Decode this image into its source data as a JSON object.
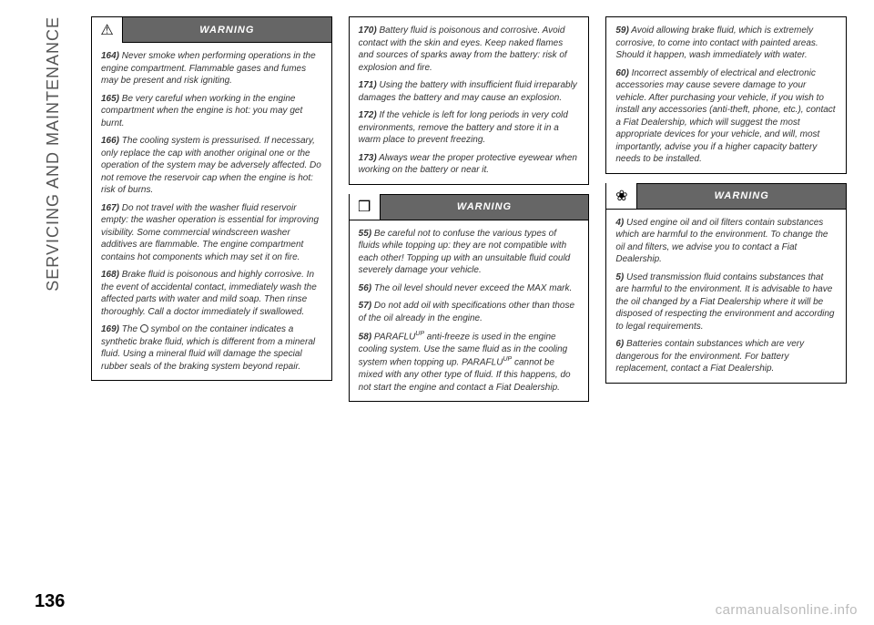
{
  "section_title": "SERVICING AND MAINTENANCE",
  "page_number": "136",
  "watermark": "carmanualsonline.info",
  "labels": {
    "warning": "WARNING"
  },
  "icons": {
    "triangle": "⚠",
    "car": "❒",
    "leaf": "❀"
  },
  "col1": {
    "box1": {
      "p164": {
        "num": "164)",
        "text": " Never smoke when performing operations in the engine compartment. Flammable gases and fumes may be present and risk igniting."
      },
      "p165": {
        "num": "165)",
        "text": " Be very careful when working in the engine compartment when the engine is hot: you may get burnt."
      },
      "p166": {
        "num": "166)",
        "text": " The cooling system is pressurised. If necessary, only replace the cap with another original one or the operation of the system may be adversely affected. Do not remove the reservoir cap when the engine is hot: risk of burns."
      },
      "p167": {
        "num": "167)",
        "text": " Do not travel with the washer fluid reservoir empty: the washer operation is essential for improving visibility. Some commercial windscreen washer additives are flammable. The engine compartment contains hot components which may set it on fire."
      },
      "p168": {
        "num": "168)",
        "text": " Brake fluid is poisonous and highly corrosive. In the event of accidental contact, immediately wash the affected parts with water and mild soap. Then rinse thoroughly. Call a doctor immediately if swallowed."
      },
      "p169a": {
        "num": "169)",
        "text_before": " The ",
        "text_after": " symbol on the container indicates a synthetic brake fluid, which is different from a mineral fluid. Using a mineral fluid will damage the special rubber seals of the braking system beyond repair."
      }
    }
  },
  "col2": {
    "box1": {
      "p170": {
        "num": "170)",
        "text": " Battery fluid is poisonous and corrosive. Avoid contact with the skin and eyes. Keep naked flames and sources of sparks away from the battery: risk of explosion and fire."
      },
      "p171": {
        "num": "171)",
        "text": "  Using the battery with insufficient fluid irreparably damages the battery and may cause an explosion."
      },
      "p172": {
        "num": "172)",
        "text": "  If the vehicle is left for long periods in very cold environments, remove the battery and store it in a warm place to prevent freezing."
      },
      "p173": {
        "num": "173)",
        "text": " Always wear the proper protective eyewear when working on the battery or near it."
      }
    },
    "box2": {
      "p55": {
        "num": "55)",
        "text": " Be careful not to confuse the various types of fluids while topping up: they are not compatible with each other! Topping up with an unsuitable fluid could severely damage your vehicle."
      },
      "p56": {
        "num": "56)",
        "text": " The oil level should never exceed the MAX mark."
      },
      "p57": {
        "num": "57)",
        "text": " Do not add oil with specifications other than those of the oil already in the engine."
      },
      "p58a": {
        "num": "58)",
        "text_before": " PARAFLU",
        "sup1": "UP",
        "text_mid": " anti-freeze is used in the engine cooling system. Use the same fluid as in the cooling system when topping up. PARAFLU",
        "sup2": "UP",
        "text_after": " cannot be mixed with any other type of fluid. If this happens, do not start the engine and contact a Fiat Dealership."
      }
    }
  },
  "col3": {
    "box1": {
      "p59": {
        "num": "59)",
        "text": " Avoid allowing brake fluid, which is extremely corrosive, to come into contact with painted areas. Should it happen, wash immediately with water."
      },
      "p60": {
        "num": "60)",
        "text": " Incorrect assembly of electrical and electronic accessories may cause severe damage to your vehicle. After purchasing your vehicle, if you wish to install any accessories (anti-theft, phone, etc.), contact a Fiat Dealership, which will suggest the most appropriate devices for your vehicle, and will, most importantly, advise you if a higher capacity battery needs to be installed."
      }
    },
    "box2": {
      "p4": {
        "num": "4)",
        "text": " Used engine oil and oil filters contain substances which are harmful to the environment. To change the oil and filters, we advise you to contact a Fiat Dealership."
      },
      "p5": {
        "num": "5)",
        "text": " Used transmission fluid contains substances that are harmful to the environment. It is advisable to have the oil changed by a Fiat Dealership where it will be disposed of respecting the environment and according to legal requirements."
      },
      "p6": {
        "num": "6)",
        "text": " Batteries contain substances which are very dangerous for the environment. For battery replacement, contact a Fiat Dealership."
      }
    }
  }
}
